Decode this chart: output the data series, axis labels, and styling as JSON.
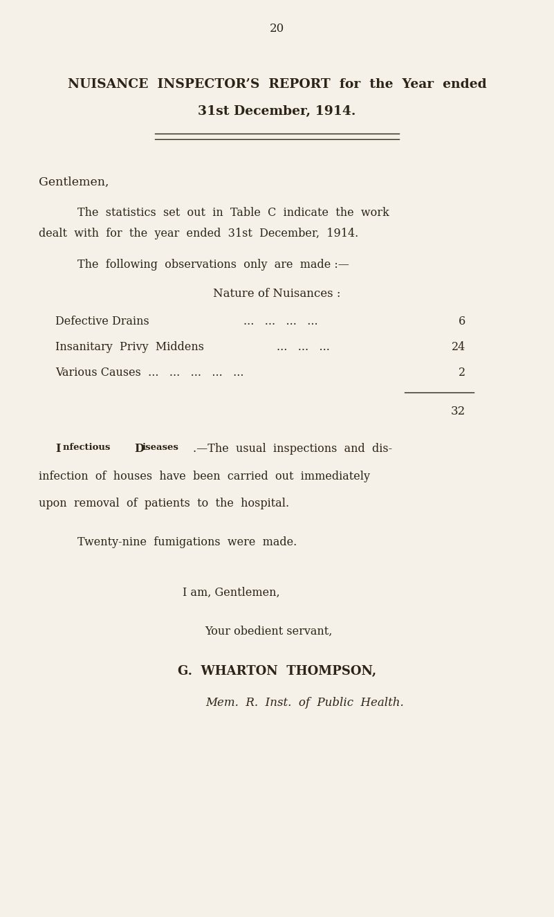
{
  "background_color": "#f5f0e8",
  "text_color": "#2c2416",
  "page_number": "20",
  "title_line1": "NUISANCE  INSPECTOR’S  REPORT  for  the  Year  ended",
  "title_line2": "31st December, 1914.",
  "salutation": "Gentlemen,",
  "para1_line1": "The  statistics  set  out  in  Table  C  indicate  the  work",
  "para1_line2": "dealt  with  for  the  year  ended  31st  December,  1914.",
  "para2": "The  following  observations  only  are  made :—",
  "nuisances_header": "Nature of Nuisances :",
  "total_value": "32",
  "infectious_para_line2": "infection  of  houses  have  been  carried  out  immediately",
  "infectious_para_line3": "upon  removal  of  patients  to  the  hospital.",
  "twenty_nine": "Twenty-nine  fumigations  were  made.",
  "closing1": "I am, Gentlemen,",
  "closing2": "Your obedient servant,",
  "signatory": "G.  WHARTON  THOMPSON,",
  "credential": "Mem.  R.  Inst.  of  Public  Health."
}
